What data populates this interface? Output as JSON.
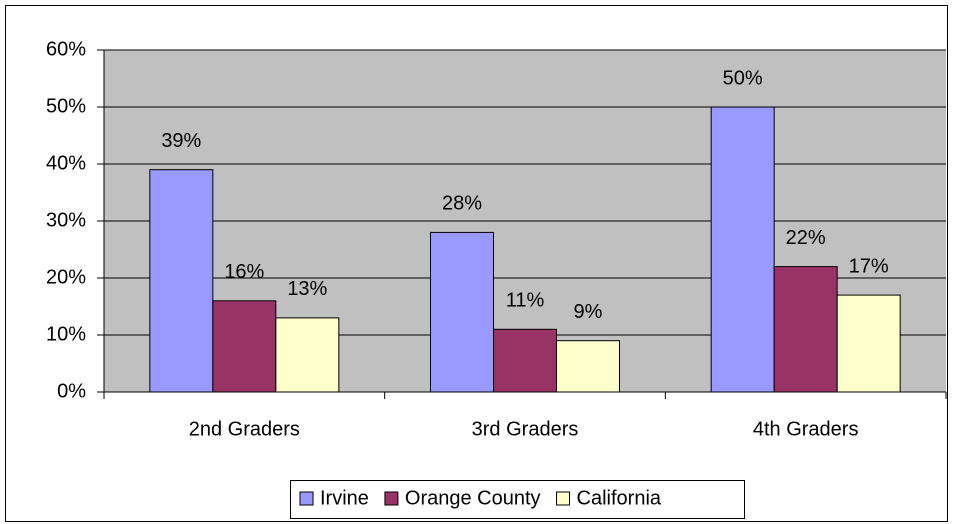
{
  "chart_data": {
    "type": "bar",
    "categories": [
      "2nd Graders",
      "3rd Graders",
      "4th Graders"
    ],
    "series": [
      {
        "name": "Irvine",
        "color": "#9999ff",
        "values": [
          39,
          28,
          50
        ],
        "value_labels": [
          "39%",
          "28%",
          "50%"
        ]
      },
      {
        "name": "Orange County",
        "color": "#993366",
        "values": [
          16,
          11,
          22
        ],
        "value_labels": [
          "16%",
          "11%",
          "22%"
        ]
      },
      {
        "name": "California",
        "color": "#ffffcc",
        "values": [
          13,
          9,
          17
        ],
        "value_labels": [
          "13%",
          "9%",
          "17%"
        ]
      }
    ],
    "ylim": [
      0,
      60
    ],
    "yticks": [
      {
        "value": 0,
        "label": "0%"
      },
      {
        "value": 10,
        "label": "10%"
      },
      {
        "value": 20,
        "label": "20%"
      },
      {
        "value": 30,
        "label": "30%"
      },
      {
        "value": 40,
        "label": "40%"
      },
      {
        "value": 50,
        "label": "50%"
      },
      {
        "value": 60,
        "label": "60%"
      }
    ],
    "grid": true,
    "legend": "bottom"
  }
}
